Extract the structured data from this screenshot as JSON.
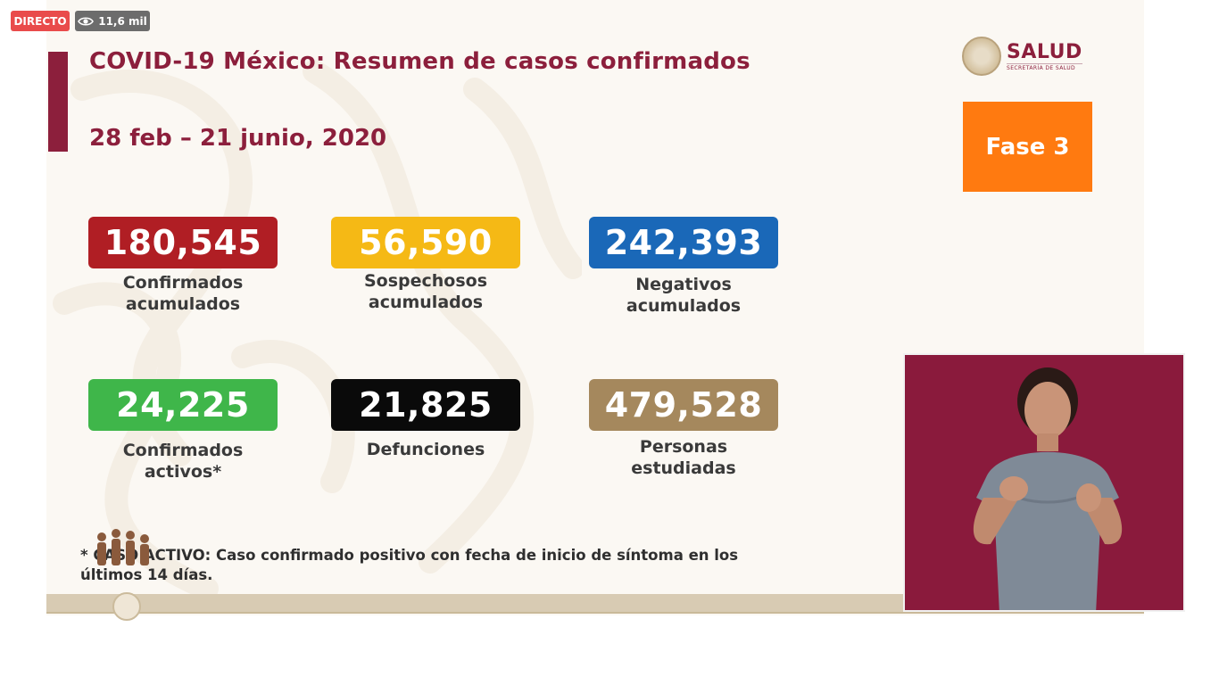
{
  "overlay": {
    "live_label": "DIRECTO",
    "views": "11,6 mil",
    "eye_icon": "eye-icon"
  },
  "slide": {
    "title": "COVID-19 México: Resumen de casos confirmados",
    "date_range": "28 feb – 21 junio, 2020",
    "logo": {
      "name": "SALUD",
      "subtitle": "SECRETARÍA DE SALUD"
    },
    "phase": "Fase 3",
    "stats": [
      {
        "value": "180,545",
        "label_line1": "Confirmados",
        "label_line2": "acumulados",
        "color": "#b01e24"
      },
      {
        "value": "56,590",
        "label_line1": "Sospechosos",
        "label_line2": "acumulados",
        "color": "#f5b915"
      },
      {
        "value": "242,393",
        "label_line1": "Negativos",
        "label_line2": "acumulados",
        "color": "#1a68b8"
      },
      {
        "value": "24,225",
        "label_line1": "Confirmados",
        "label_line2": "activos*",
        "color": "#3fb64a"
      },
      {
        "value": "21,825",
        "label_line1": "Defunciones",
        "label_line2": "",
        "color": "#0a0a0a"
      },
      {
        "value": "479,528",
        "label_line1": "Personas",
        "label_line2": "estudiadas",
        "color": "#a5885d"
      }
    ],
    "footnote_line1": "* CASO ACTIVO: Caso confirmado positivo con fecha de inicio de síntoma en los",
    "footnote_line2": "últimos 14 días."
  },
  "colors": {
    "accent": "#8c1f3c",
    "phase": "#ff7a10",
    "live": "#e94b4b"
  }
}
